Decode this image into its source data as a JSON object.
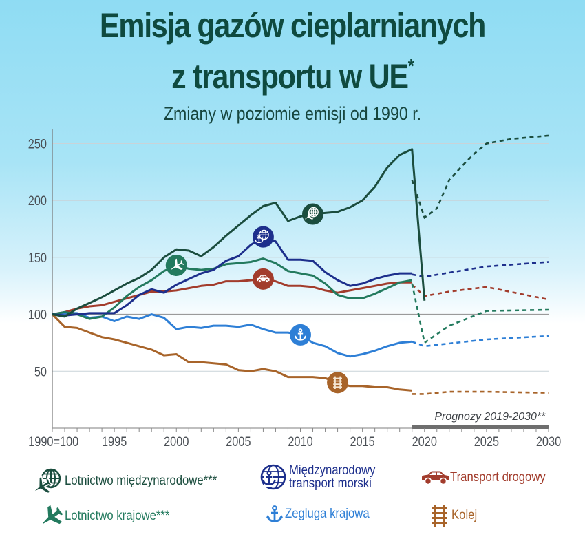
{
  "header": {
    "title_line1": "Emisja gazów cieplarnianych",
    "title_line2": "z transportu w UE",
    "title_asterisk": "*",
    "subtitle": "Zmiany w poziomie emisji od 1990 r."
  },
  "chart_data": {
    "type": "line",
    "title": "Emisja gazów cieplarnianych z transportu w UE*",
    "subtitle": "Zmiany w poziomie emisji od 1990 r.",
    "xlabel": "",
    "ylabel": "",
    "x_range": [
      1990,
      2030
    ],
    "ylim": [
      0,
      260
    ],
    "y_ticks": [
      50,
      100,
      150,
      200,
      250
    ],
    "y_tick_labels": [
      "50",
      "100",
      "150",
      "200",
      "250"
    ],
    "x_ticks": [
      1990,
      1995,
      2000,
      2005,
      2010,
      2015,
      2020,
      2025,
      2030
    ],
    "x_tick_labels": [
      "1990=100",
      "1995",
      "2000",
      "2005",
      "2010",
      "2015",
      "2020",
      "2025",
      "2030"
    ],
    "grid": true,
    "baseline": 100,
    "forecast_annotation": "Prognozy 2019-2030**",
    "forecast_range": [
      2019,
      2030
    ],
    "series": [
      {
        "name": "Lotnictwo międzynarodowe***",
        "key": "intl_aviation",
        "color": "#1b4d3e",
        "icon": "globe-plane-icon",
        "marker_year": 2011,
        "historical": {
          "x": [
            1990,
            1991,
            1992,
            1993,
            1994,
            1995,
            1996,
            1997,
            1998,
            1999,
            2000,
            2001,
            2002,
            2003,
            2004,
            2005,
            2006,
            2007,
            2008,
            2009,
            2010,
            2011,
            2012,
            2013,
            2014,
            2015,
            2016,
            2017,
            2018,
            2019,
            2020
          ],
          "y": [
            100,
            98,
            105,
            110,
            115,
            121,
            127,
            132,
            139,
            150,
            157,
            156,
            151,
            159,
            169,
            178,
            187,
            195,
            198,
            182,
            186,
            188,
            189,
            190,
            194,
            200,
            212,
            229,
            240,
            245,
            112
          ]
        },
        "forecast": {
          "x": [
            2019,
            2020,
            2021,
            2022,
            2023,
            2024,
            2025,
            2026,
            2027,
            2028,
            2029,
            2030
          ],
          "y": [
            218,
            185,
            193,
            218,
            230,
            241,
            250,
            252,
            254,
            255,
            256,
            257
          ]
        }
      },
      {
        "name": "Międzynarodowy transport morski",
        "key": "intl_maritime",
        "color": "#1d2f8c",
        "icon": "globe-anchor-icon",
        "marker_year": 2007,
        "historical": {
          "x": [
            1990,
            1991,
            1992,
            1993,
            1994,
            1995,
            1996,
            1997,
            1998,
            1999,
            2000,
            2001,
            2002,
            2003,
            2004,
            2005,
            2006,
            2007,
            2008,
            2009,
            2010,
            2011,
            2012,
            2013,
            2014,
            2015,
            2016,
            2017,
            2018,
            2019
          ],
          "y": [
            100,
            99,
            100,
            101,
            101,
            101,
            108,
            117,
            122,
            119,
            126,
            131,
            136,
            139,
            147,
            151,
            161,
            168,
            164,
            148,
            148,
            147,
            137,
            130,
            125,
            127,
            131,
            134,
            136,
            136
          ]
        },
        "forecast": {
          "x": [
            2019,
            2020,
            2025,
            2030
          ],
          "y": [
            135,
            133,
            142,
            146
          ]
        }
      },
      {
        "name": "Transport drogowy",
        "key": "road",
        "color": "#a23c2c",
        "icon": "car-icon",
        "marker_year": 2007,
        "historical": {
          "x": [
            1990,
            1991,
            1992,
            1993,
            1994,
            1995,
            1996,
            1997,
            1998,
            1999,
            2000,
            2001,
            2002,
            2003,
            2004,
            2005,
            2006,
            2007,
            2008,
            2009,
            2010,
            2011,
            2012,
            2013,
            2014,
            2015,
            2016,
            2017,
            2018,
            2019
          ],
          "y": [
            100,
            102,
            105,
            107,
            108,
            111,
            114,
            117,
            120,
            120,
            121,
            123,
            125,
            126,
            129,
            129,
            130,
            131,
            129,
            125,
            125,
            124,
            121,
            119,
            121,
            123,
            125,
            127,
            128,
            128
          ]
        },
        "forecast": {
          "x": [
            2019,
            2020,
            2022,
            2025,
            2030
          ],
          "y": [
            126,
            116,
            120,
            124,
            113
          ]
        }
      },
      {
        "name": "Lotnictwo krajowe***",
        "key": "domestic_aviation",
        "color": "#237a5e",
        "icon": "plane-icon",
        "marker_year": 2000,
        "historical": {
          "x": [
            1990,
            1991,
            1992,
            1993,
            1994,
            1995,
            1996,
            1997,
            1998,
            1999,
            2000,
            2001,
            2002,
            2003,
            2004,
            2005,
            2006,
            2007,
            2008,
            2009,
            2010,
            2011,
            2012,
            2013,
            2014,
            2015,
            2016,
            2017,
            2018,
            2019
          ],
          "y": [
            100,
            102,
            100,
            96,
            98,
            106,
            116,
            124,
            130,
            138,
            143,
            140,
            139,
            140,
            144,
            145,
            146,
            149,
            145,
            138,
            136,
            134,
            127,
            117,
            114,
            114,
            118,
            123,
            128,
            130
          ]
        },
        "forecast": {
          "x": [
            2019,
            2020,
            2022,
            2025,
            2030
          ],
          "y": [
            127,
            75,
            90,
            103,
            104
          ]
        }
      },
      {
        "name": "Żegluga krajowa",
        "key": "domestic_shipping",
        "color": "#2e7fd6",
        "icon": "anchor-icon",
        "marker_year": 2010,
        "historical": {
          "x": [
            1990,
            1991,
            1992,
            1993,
            1994,
            1995,
            1996,
            1997,
            1998,
            1999,
            2000,
            2001,
            2002,
            2003,
            2004,
            2005,
            2006,
            2007,
            2008,
            2009,
            2010,
            2011,
            2012,
            2013,
            2014,
            2015,
            2016,
            2017,
            2018,
            2019
          ],
          "y": [
            100,
            101,
            101,
            97,
            98,
            94,
            98,
            96,
            100,
            97,
            87,
            89,
            88,
            90,
            90,
            89,
            91,
            87,
            84,
            84,
            82,
            75,
            72,
            66,
            63,
            65,
            68,
            72,
            75,
            76
          ]
        },
        "forecast": {
          "x": [
            2019,
            2020,
            2025,
            2030
          ],
          "y": [
            76,
            72,
            78,
            81
          ]
        }
      },
      {
        "name": "Kolej",
        "key": "rail",
        "color": "#a8642a",
        "icon": "rail-track-icon",
        "marker_year": 2013,
        "historical": {
          "x": [
            1990,
            1991,
            1992,
            1993,
            1994,
            1995,
            1996,
            1997,
            1998,
            1999,
            2000,
            2001,
            2002,
            2003,
            2004,
            2005,
            2006,
            2007,
            2008,
            2009,
            2010,
            2011,
            2012,
            2013,
            2014,
            2015,
            2016,
            2017,
            2018,
            2019
          ],
          "y": [
            100,
            89,
            88,
            84,
            80,
            78,
            75,
            72,
            69,
            64,
            65,
            58,
            58,
            57,
            56,
            51,
            50,
            52,
            50,
            45,
            45,
            45,
            44,
            40,
            37,
            37,
            36,
            36,
            34,
            33
          ]
        },
        "forecast": {
          "x": [
            2019,
            2020,
            2022,
            2025,
            2030
          ],
          "y": [
            30,
            30,
            32,
            32,
            31
          ]
        }
      }
    ]
  },
  "legend": {
    "items": [
      {
        "label": "Lotnictwo międzynarodowe***",
        "icon": "globe-plane-icon",
        "color": "#1b4d3e"
      },
      {
        "label_line1": "Międzynarodowy",
        "label_line2": "transport morski",
        "icon": "globe-anchor-icon",
        "color": "#1d2f8c"
      },
      {
        "label": "Transport drogowy",
        "icon": "car-icon",
        "color": "#a23c2c"
      },
      {
        "label": "Lotnictwo krajowe***",
        "icon": "plane-icon",
        "color": "#237a5e"
      },
      {
        "label": "Żegluga krajowa",
        "icon": "anchor-icon",
        "color": "#2e7fd6"
      },
      {
        "label": "Kolej",
        "icon": "rail-track-icon",
        "color": "#a8642a"
      }
    ]
  }
}
